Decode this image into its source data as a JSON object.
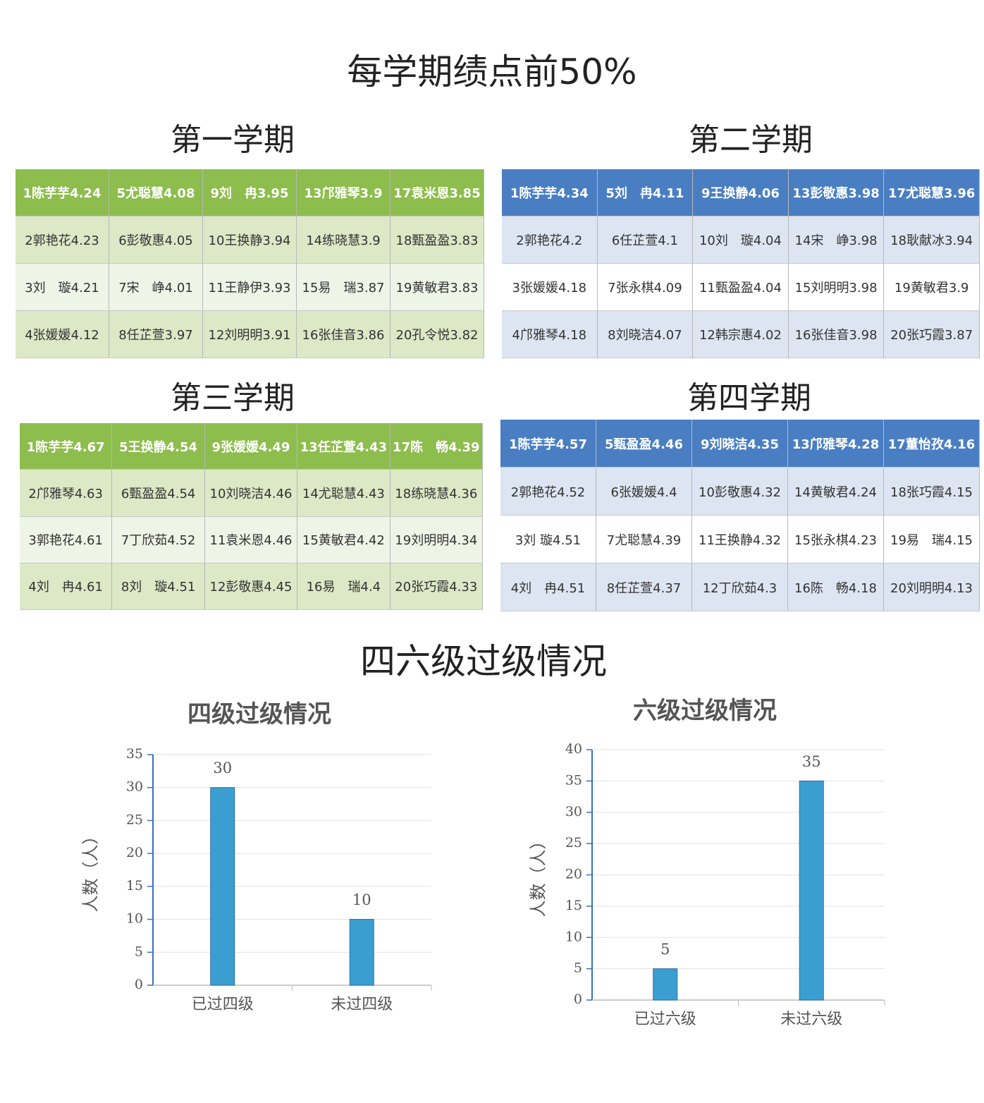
{
  "title": "每学期绩点前50%",
  "semesters": [
    {
      "title": "第一学期",
      "rows": [
        [
          "1陈芋芋4.24",
          "5尤聪慧4.08",
          "9刘　冉3.95",
          "13邝雅琴3.9",
          "17袁米恩3.85"
        ],
        [
          "2郭艳花4.23",
          "6彭敬惠4.05",
          "10王换静3.94",
          "14练晓慧3.9",
          "18甄盈盈3.83"
        ],
        [
          "3刘　璇4.21",
          "7宋　峥4.01",
          "11王静伊3.93",
          "15易　瑞3.87",
          "19黄敏君3.83"
        ],
        [
          "4张媛媛4.12",
          "8任芷萱3.97",
          "12刘明明3.91",
          "16张佳音3.86",
          "20孔令悦3.82"
        ]
      ]
    },
    {
      "title": "第二学期",
      "rows": [
        [
          "1陈芋芋4.34",
          "5刘　冉4.11",
          "9王换静4.06",
          "13彭敬惠3.98",
          "17尤聪慧3.96"
        ],
        [
          "2郭艳花4.2",
          "6任芷萱4.1",
          "10刘　璇4.04",
          "14宋　峥3.98",
          "18耿献冰3.94"
        ],
        [
          "3张媛媛4.18",
          "7张永棋4.09",
          "11甄盈盈4.04",
          "15刘明明3.98",
          "19黄敏君3.9"
        ],
        [
          "4邝雅琴4.18",
          "8刘晓洁4.07",
          "12韩宗惠4.02",
          "16张佳音3.98",
          "20张巧霞3.87"
        ]
      ]
    },
    {
      "title": "第三学期",
      "rows": [
        [
          "1陈芋芋4.67",
          "5王换静4.54",
          "9张媛媛4.49",
          "13任芷萱4.43",
          "17陈　畅4.39"
        ],
        [
          "2邝雅琴4.63",
          "6甄盈盈4.54",
          "10刘晓洁4.46",
          "14尤聪慧4.43",
          "18练晓慧4.36"
        ],
        [
          "3郭艳花4.61",
          "7丁欣茹4.52",
          "11袁米恩4.46",
          "15黄敏君4.42",
          "19刘明明4.34"
        ],
        [
          "4刘　冉4.61",
          "8刘　璇4.51",
          "12彭敬惠4.45",
          "16易　瑞4.4",
          "20张巧霞4.33"
        ]
      ]
    },
    {
      "title": "第四学期",
      "rows": [
        [
          "1陈芋芋4.57",
          "5甄盈盈4.46",
          "9刘晓洁4.35",
          "13邝雅琴4.28",
          "17董怡孜4.16"
        ],
        [
          "2郭艳花4.52",
          "6张媛媛4.4",
          "10彭敬惠4.32",
          "14黄敏君4.24",
          "18张巧霞4.15"
        ],
        [
          "3刘 璇4.51",
          "7尤聪慧4.39",
          "11王换静4.32",
          "15张永棋4.23",
          "19易　瑞4.15"
        ],
        [
          "4刘　冉4.51",
          "8任芷萱4.37",
          "12丁欣茹4.3",
          "16陈　畅4.18",
          "20刘明明4.13"
        ]
      ]
    }
  ],
  "section_title": "四六级过级情况",
  "chart_data": [
    {
      "type": "bar",
      "title": "四级过级情况",
      "y_label": "人数（人）",
      "categories": [
        "已过四级",
        "未过四级"
      ],
      "values": [
        30,
        10
      ],
      "color": "#3a9fd0",
      "ylim": [
        0,
        35
      ],
      "yticks": [
        0,
        5,
        10,
        15,
        20,
        25,
        30,
        35
      ],
      "grid": true
    },
    {
      "type": "bar",
      "title": "六级过级情况",
      "y_label": "人数（人）",
      "categories": [
        "已过六级",
        "未过六级"
      ],
      "values": [
        5,
        35
      ],
      "color": "#3a9fd0",
      "ylim": [
        0,
        40
      ],
      "yticks": [
        0,
        5,
        10,
        15,
        20,
        25,
        30,
        35,
        40
      ],
      "grid": true
    }
  ]
}
